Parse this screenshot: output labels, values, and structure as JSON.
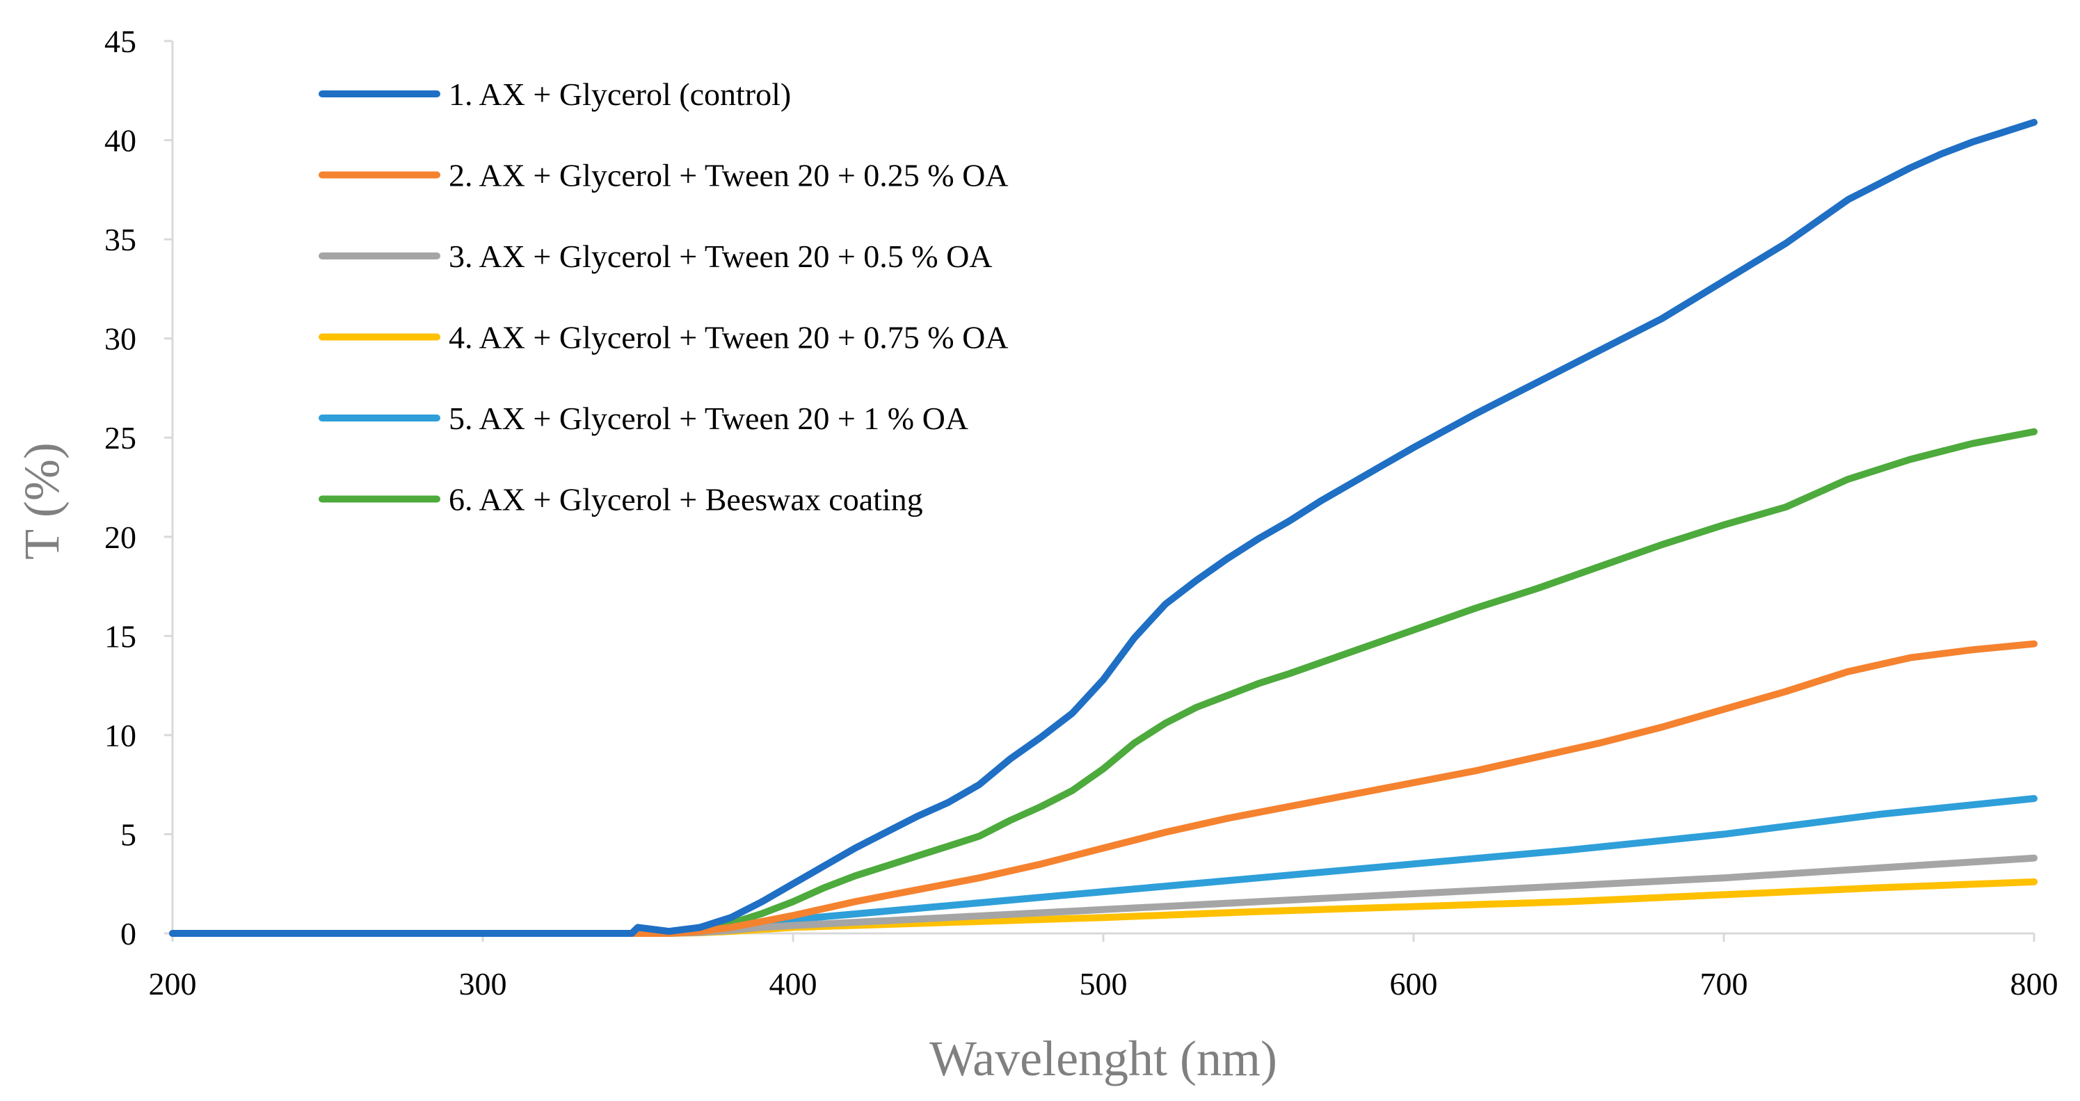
{
  "chart_data": {
    "type": "line",
    "title": "",
    "xlabel": "Wavelenght (nm)",
    "ylabel": "T (%)",
    "xlim": [
      200,
      800
    ],
    "ylim": [
      0,
      45
    ],
    "xticks": [
      200,
      300,
      400,
      500,
      600,
      700,
      800
    ],
    "yticks": [
      0,
      5,
      10,
      15,
      20,
      25,
      30,
      35,
      40,
      45
    ],
    "grid": false,
    "legend_position": "top-left",
    "series": [
      {
        "name": "1. AX + Glycerol (control)",
        "color": "#1f6fc4",
        "x": [
          200,
          340,
          348,
          350,
          360,
          370,
          380,
          390,
          400,
          410,
          420,
          430,
          440,
          450,
          460,
          470,
          480,
          490,
          500,
          510,
          520,
          530,
          540,
          550,
          560,
          570,
          580,
          590,
          600,
          620,
          640,
          660,
          680,
          700,
          720,
          730,
          740,
          750,
          760,
          770,
          780,
          790,
          800
        ],
        "y": [
          0,
          0,
          0,
          0.3,
          0.1,
          0.3,
          0.8,
          1.6,
          2.5,
          3.4,
          4.3,
          5.1,
          5.9,
          6.6,
          7.5,
          8.8,
          9.9,
          11.1,
          12.8,
          14.9,
          16.6,
          17.8,
          18.9,
          19.9,
          20.8,
          21.8,
          22.7,
          23.6,
          24.5,
          26.2,
          27.8,
          29.4,
          31.0,
          32.9,
          34.8,
          35.9,
          37.0,
          37.8,
          38.6,
          39.3,
          39.9,
          40.4,
          40.9
        ]
      },
      {
        "name": "2. AX + Glycerol + Tween 20 + 0.25 % OA",
        "color": "#f5822f",
        "x": [
          200,
          350,
          360,
          370,
          380,
          390,
          400,
          420,
          440,
          460,
          480,
          500,
          520,
          540,
          560,
          580,
          600,
          620,
          640,
          660,
          680,
          700,
          720,
          740,
          760,
          780,
          800
        ],
        "y": [
          0,
          0,
          0,
          0.1,
          0.3,
          0.6,
          0.9,
          1.6,
          2.2,
          2.8,
          3.5,
          4.3,
          5.1,
          5.8,
          6.4,
          7.0,
          7.6,
          8.2,
          8.9,
          9.6,
          10.4,
          11.3,
          12.2,
          13.2,
          13.9,
          14.3,
          14.6
        ]
      },
      {
        "name": "3. AX + Glycerol + Tween 20 + 0.5 % OA",
        "color": "#a5a5a5",
        "x": [
          200,
          350,
          360,
          370,
          380,
          390,
          400,
          450,
          500,
          550,
          600,
          650,
          700,
          750,
          800
        ],
        "y": [
          0,
          0,
          0,
          0.05,
          0.15,
          0.3,
          0.4,
          0.8,
          1.2,
          1.6,
          2.0,
          2.4,
          2.8,
          3.3,
          3.8
        ]
      },
      {
        "name": "4. AX + Glycerol + Tween 20 + 0.75 % OA",
        "color": "#ffc000",
        "x": [
          200,
          350,
          360,
          370,
          380,
          390,
          400,
          450,
          500,
          550,
          600,
          650,
          700,
          750,
          800
        ],
        "y": [
          0,
          0,
          0,
          0.03,
          0.1,
          0.2,
          0.3,
          0.55,
          0.8,
          1.1,
          1.35,
          1.6,
          1.95,
          2.3,
          2.6
        ]
      },
      {
        "name": "5. AX + Glycerol + Tween 20 + 1 % OA",
        "color": "#2e9fd9",
        "x": [
          200,
          350,
          360,
          370,
          380,
          390,
          400,
          450,
          500,
          550,
          600,
          650,
          700,
          750,
          800
        ],
        "y": [
          0,
          0,
          0,
          0.1,
          0.3,
          0.5,
          0.7,
          1.4,
          2.1,
          2.8,
          3.5,
          4.2,
          5.0,
          6.0,
          6.8
        ]
      },
      {
        "name": "6. AX + Glycerol + Beeswax coating",
        "color": "#4daa3c",
        "x": [
          200,
          350,
          360,
          370,
          380,
          390,
          400,
          410,
          420,
          430,
          440,
          450,
          460,
          470,
          480,
          490,
          500,
          510,
          520,
          530,
          540,
          550,
          560,
          580,
          600,
          620,
          640,
          660,
          680,
          700,
          720,
          730,
          740,
          760,
          780,
          800
        ],
        "y": [
          0,
          0,
          0,
          0.2,
          0.5,
          1.0,
          1.6,
          2.3,
          2.9,
          3.4,
          3.9,
          4.4,
          4.9,
          5.7,
          6.4,
          7.2,
          8.3,
          9.6,
          10.6,
          11.4,
          12.0,
          12.6,
          13.1,
          14.2,
          15.3,
          16.4,
          17.4,
          18.5,
          19.6,
          20.6,
          21.5,
          22.2,
          22.9,
          23.9,
          24.7,
          25.3
        ]
      }
    ]
  }
}
